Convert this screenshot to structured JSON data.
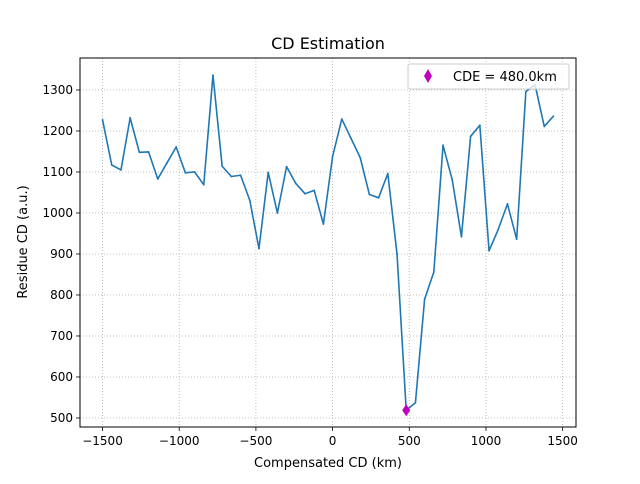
{
  "chart_data": {
    "type": "line",
    "title": "CD Estimation",
    "xlabel": "Compensated CD (km)",
    "ylabel": "Residue CD (a.u.)",
    "xlim": [
      -1647,
      1587
    ],
    "ylim": [
      478,
      1378
    ],
    "x_ticks": [
      -1500,
      -1000,
      -500,
      0,
      500,
      1000,
      1500
    ],
    "x_tick_labels": [
      "−1500",
      "−1000",
      "−500",
      "0",
      "500",
      "1000",
      "1500"
    ],
    "y_ticks": [
      500,
      600,
      700,
      800,
      900,
      1000,
      1100,
      1200,
      1300
    ],
    "y_tick_labels": [
      "500",
      "600",
      "700",
      "800",
      "900",
      "1000",
      "1100",
      "1200",
      "1300"
    ],
    "grid": true,
    "grid_style": "dotted",
    "legend_placement": "top-right",
    "series": [
      {
        "color": "#1f77b4",
        "x": [
          -1500,
          -1440,
          -1380,
          -1320,
          -1260,
          -1200,
          -1140,
          -1080,
          -1020,
          -960,
          -900,
          -840,
          -780,
          -720,
          -660,
          -600,
          -540,
          -480,
          -420,
          -360,
          -300,
          -240,
          -180,
          -120,
          -60,
          0,
          60,
          120,
          180,
          240,
          300,
          360,
          420,
          480,
          540,
          600,
          660,
          720,
          780,
          840,
          900,
          960,
          1020,
          1080,
          1140,
          1200,
          1260,
          1320,
          1380,
          1440
        ],
        "values": [
          1227,
          1117,
          1105,
          1232,
          1148,
          1149,
          1083,
          1122,
          1161,
          1098,
          1100,
          1069,
          1336,
          1114,
          1089,
          1092,
          1031,
          913,
          1099,
          1000,
          1113,
          1072,
          1047,
          1055,
          973,
          1138,
          1229,
          1182,
          1135,
          1045,
          1037,
          1096,
          900,
          519,
          537,
          790,
          856,
          1165,
          1081,
          942,
          1187,
          1214,
          908,
          960,
          1022,
          936,
          1296,
          1313,
          1211,
          1236
        ]
      },
      {
        "name": "CDE = 480.0km",
        "type": "marker",
        "marker": "diamond",
        "color": "#bf00bf",
        "x": [
          480
        ],
        "values": [
          519
        ]
      }
    ]
  }
}
